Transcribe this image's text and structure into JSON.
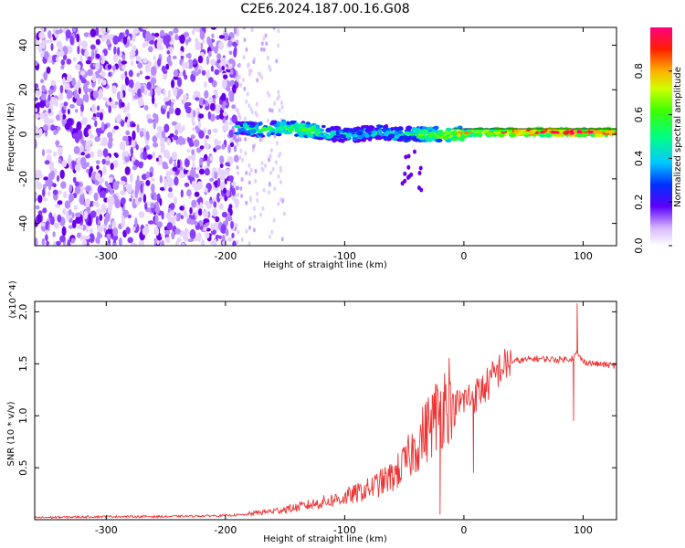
{
  "title": "C2E6.2024.187.00.16.G08",
  "chart_data": [
    {
      "type": "heatmap",
      "name": "spectrogram",
      "xlabel": "Height of straight line (km)",
      "ylabel": "Frequency (Hz)",
      "xlim": [
        -360,
        128
      ],
      "ylim": [
        -50,
        48
      ],
      "x_ticks": [
        -300,
        -200,
        -100,
        0,
        100
      ],
      "x_tick_labels": [
        "-300",
        "-200",
        "-100",
        "0",
        "100"
      ],
      "y_ticks": [
        -40,
        -20,
        0,
        20,
        40
      ],
      "y_tick_labels": [
        "-40",
        "-20",
        "0",
        "20",
        "40"
      ],
      "noise_region_x": [
        -360,
        -190
      ],
      "sparse_noise_x": [
        -190,
        -150
      ],
      "signal_band": [
        {
          "x": -190,
          "f": 3,
          "amp": 0.5
        },
        {
          "x": -170,
          "f": 2,
          "amp": 0.5
        },
        {
          "x": -150,
          "f": 3,
          "amp": 0.55
        },
        {
          "x": -130,
          "f": 2,
          "amp": 0.6
        },
        {
          "x": -110,
          "f": 0,
          "amp": 0.45
        },
        {
          "x": -90,
          "f": 0,
          "amp": 0.4
        },
        {
          "x": -70,
          "f": 1,
          "amp": 0.45
        },
        {
          "x": -50,
          "f": 0,
          "amp": 0.5
        },
        {
          "x": -30,
          "f": 0,
          "amp": 0.6
        },
        {
          "x": -10,
          "f": 0,
          "amp": 0.7
        },
        {
          "x": 10,
          "f": 1,
          "amp": 0.75
        },
        {
          "x": 30,
          "f": 1,
          "amp": 0.8
        },
        {
          "x": 50,
          "f": 1,
          "amp": 0.85
        },
        {
          "x": 70,
          "f": 1,
          "amp": 0.9
        },
        {
          "x": 90,
          "f": 1,
          "amp": 0.95
        },
        {
          "x": 110,
          "f": 1,
          "amp": 0.9
        },
        {
          "x": 128,
          "f": 1,
          "amp": 0.9
        }
      ],
      "colorbar": {
        "label": "Normalized spectral amplitude",
        "ticks": [
          0.0,
          0.2,
          0.4,
          0.6,
          0.8
        ],
        "tick_labels": [
          "0.0",
          "0.2",
          "0.4",
          "0.6",
          "0.8"
        ],
        "range": [
          0,
          1
        ]
      }
    },
    {
      "type": "line",
      "name": "snr",
      "xlabel": "Height of straight line (km)",
      "ylabel": "SNR (10 * v/v)",
      "y_multiplier": "(x10^4)",
      "xlim": [
        -360,
        128
      ],
      "ylim": [
        0,
        2.1
      ],
      "x_ticks": [
        -300,
        -200,
        -100,
        0,
        100
      ],
      "x_tick_labels": [
        "-300",
        "-200",
        "-100",
        "0",
        "100"
      ],
      "y_ticks": [
        0.5,
        1.0,
        1.5,
        2.0
      ],
      "y_tick_labels": [
        "0.5",
        "1.0",
        "1.5",
        "2.0"
      ],
      "series": [
        {
          "name": "SNR",
          "color": "#ee3333",
          "x": [
            -360,
            -300,
            -250,
            -200,
            -180,
            -160,
            -140,
            -120,
            -100,
            -80,
            -60,
            -50,
            -40,
            -30,
            -20,
            -10,
            0,
            10,
            20,
            30,
            40,
            60,
            80,
            90,
            95,
            100,
            110,
            128
          ],
          "y": [
            0.02,
            0.03,
            0.03,
            0.04,
            0.05,
            0.07,
            0.1,
            0.14,
            0.18,
            0.25,
            0.35,
            0.45,
            0.6,
            0.75,
            0.9,
            1.05,
            1.15,
            1.2,
            1.3,
            1.45,
            1.52,
            1.55,
            1.54,
            1.55,
            1.6,
            1.52,
            1.5,
            1.48
          ]
        }
      ],
      "spikes": [
        {
          "x": 95,
          "y": 2.08
        },
        {
          "x": 92,
          "y": 0.95
        },
        {
          "x": 8,
          "y": 0.45
        },
        {
          "x": -20,
          "y": 0.05
        }
      ]
    }
  ],
  "colors": {
    "noise": "#7a1cf0",
    "line": "#ee3333",
    "frame": "#000000"
  }
}
